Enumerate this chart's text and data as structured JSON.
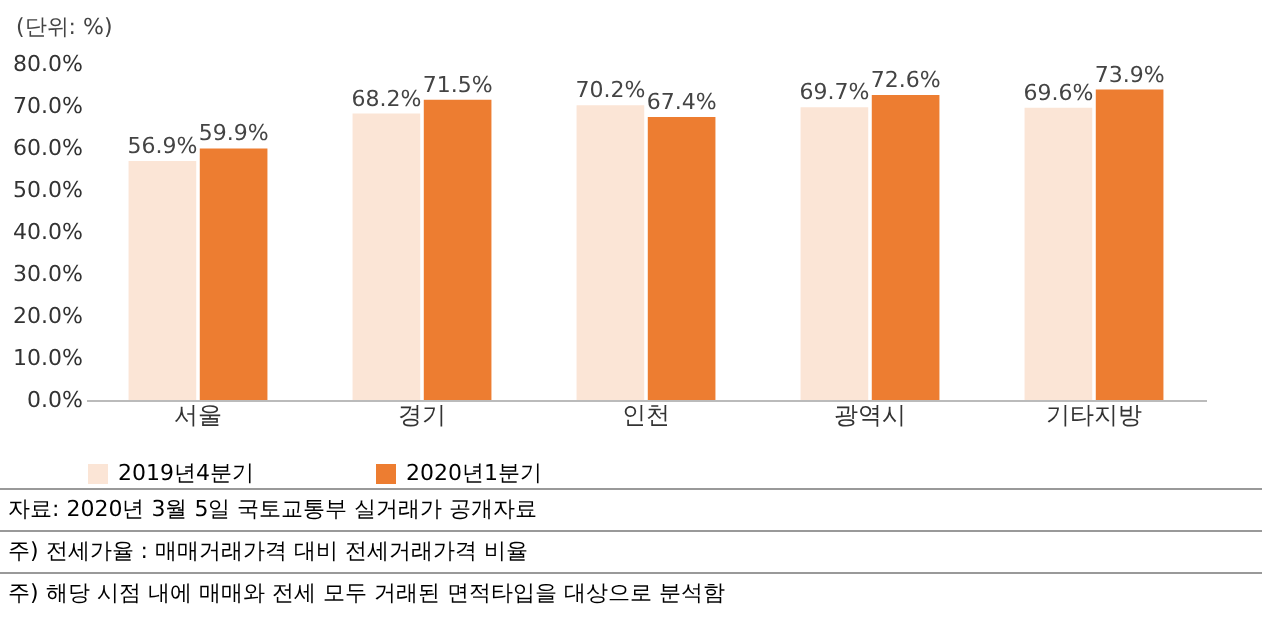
{
  "chart_data": {
    "type": "bar",
    "categories": [
      "서울",
      "경기",
      "인천",
      "광역시",
      "기타지방"
    ],
    "series": [
      {
        "name": "2019년4분기",
        "color": "#fbe5d6",
        "values": [
          56.9,
          68.2,
          70.2,
          69.7,
          69.6
        ],
        "value_labels": [
          "56.9%",
          "68.2%",
          "70.2%",
          "69.7%",
          "69.6%"
        ]
      },
      {
        "name": "2020년1분기",
        "color": "#ed7d31",
        "values": [
          59.9,
          71.5,
          67.4,
          72.6,
          73.9
        ],
        "value_labels": [
          "59.9%",
          "71.5%",
          "67.4%",
          "72.6%",
          "73.9%"
        ]
      }
    ],
    "ylim": [
      0,
      80
    ],
    "yticks": [
      {
        "value": 0,
        "label": "0.0%"
      },
      {
        "value": 10,
        "label": "10.0%"
      },
      {
        "value": 20,
        "label": "20.0%"
      },
      {
        "value": 30,
        "label": "30.0%"
      },
      {
        "value": 40,
        "label": "40.0%"
      },
      {
        "value": 50,
        "label": "50.0%"
      },
      {
        "value": 60,
        "label": "60.0%"
      },
      {
        "value": 70,
        "label": "70.0%"
      },
      {
        "value": 80,
        "label": "80.0%"
      }
    ],
    "grid": false,
    "legend": "bottom",
    "annotations": [
      "(단위: %)",
      "자료: 2020년 3월 5일 국토교통부 실거래가 공개자료",
      "주) 전세가율 :  매매거래가격 대비 전세거래가격 비율",
      "주) 해당 시점 내에 매매와 전세 모두 거래된 면적타입을 대상으로 분석함"
    ]
  }
}
